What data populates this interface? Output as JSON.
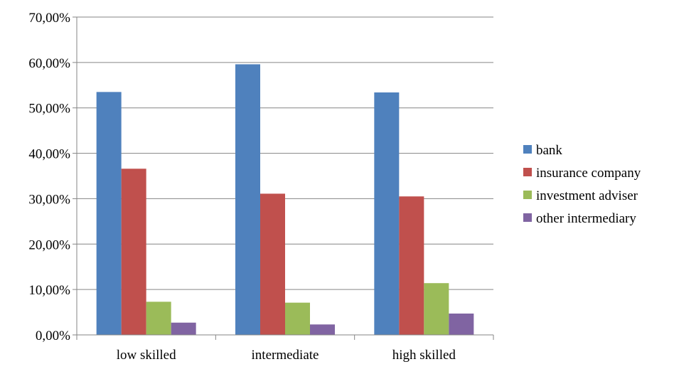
{
  "chart_data": {
    "type": "bar",
    "title": "",
    "xlabel": "",
    "ylabel": "",
    "categories": [
      "low skilled",
      "intermediate",
      "high skilled"
    ],
    "series": [
      {
        "name": "bank",
        "color": "#4F81BD",
        "values": [
          53.5,
          59.6,
          53.4
        ]
      },
      {
        "name": "insurance company",
        "color": "#C0504D",
        "values": [
          36.6,
          31.1,
          30.5
        ]
      },
      {
        "name": "investment adviser",
        "color": "#9BBB59",
        "values": [
          7.3,
          7.1,
          11.4
        ]
      },
      {
        "name": "other intermediary",
        "color": "#8064A2",
        "values": [
          2.7,
          2.3,
          4.7
        ]
      }
    ],
    "ylim": [
      0,
      70
    ],
    "yticks": [
      "0,00%",
      "10,00%",
      "20,00%",
      "30,00%",
      "40,00%",
      "50,00%",
      "60,00%",
      "70,00%"
    ],
    "grid": true,
    "legend_position": "right"
  }
}
